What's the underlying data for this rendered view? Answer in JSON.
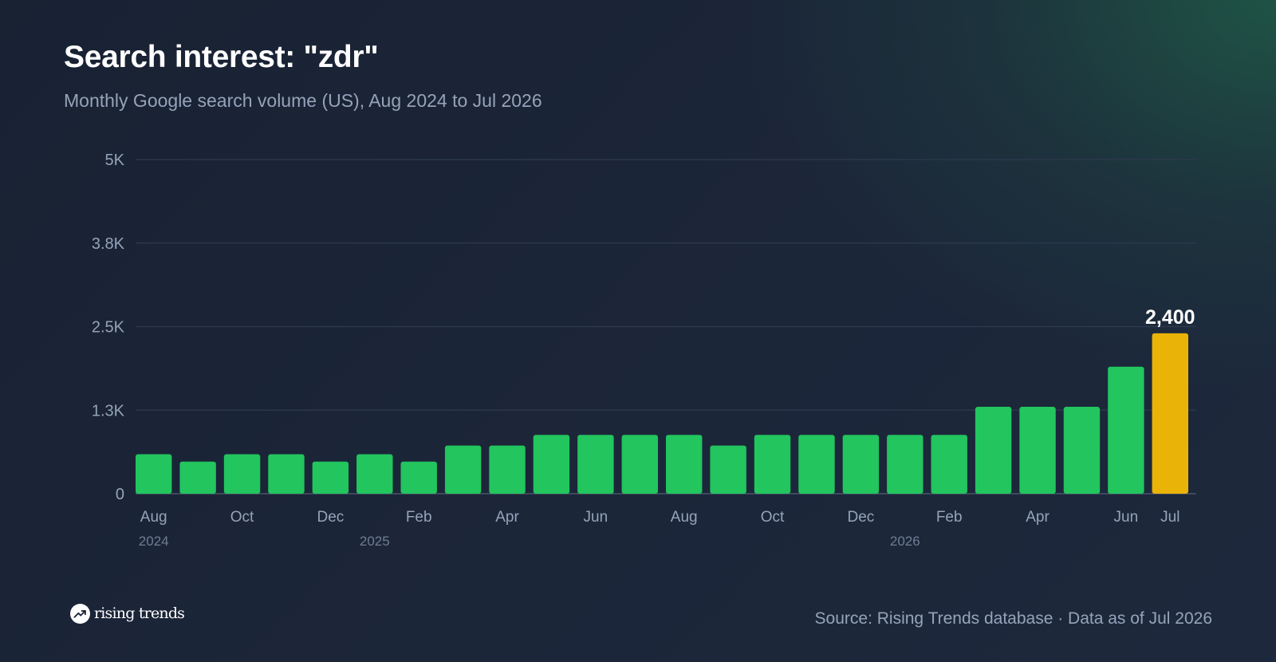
{
  "header": {
    "title": "Search interest: \"zdr\"",
    "subtitle": "Monthly Google search volume (US), Aug 2024 to Jul 2026"
  },
  "chart_data": {
    "type": "bar",
    "title": "Search interest: \"zdr\"",
    "subtitle": "Monthly Google search volume (US), Aug 2024 to Jul 2026",
    "xlabel": "",
    "ylabel": "",
    "categories": [
      "Aug 2024",
      "Sep 2024",
      "Oct 2024",
      "Nov 2024",
      "Dec 2024",
      "Jan 2025",
      "Feb 2025",
      "Mar 2025",
      "Apr 2025",
      "May 2025",
      "Jun 2025",
      "Jul 2025",
      "Aug 2025",
      "Sep 2025",
      "Oct 2025",
      "Nov 2025",
      "Dec 2025",
      "Jan 2026",
      "Feb 2026",
      "Mar 2026",
      "Apr 2026",
      "May 2026",
      "Jun 2026",
      "Jul 2026"
    ],
    "values": [
      590,
      480,
      590,
      590,
      480,
      590,
      480,
      720,
      720,
      880,
      880,
      880,
      880,
      720,
      880,
      880,
      880,
      880,
      880,
      1300,
      1300,
      1300,
      1900,
      2400
    ],
    "ylim": [
      0,
      5000
    ],
    "yticks": [
      0,
      1250,
      2500,
      3750,
      5000
    ],
    "ytick_labels": [
      "0",
      "1.3K",
      "2.5K",
      "3.8K",
      "5K"
    ],
    "xtick_labels": [
      {
        "index": 0,
        "label": "Aug"
      },
      {
        "index": 2,
        "label": "Oct"
      },
      {
        "index": 4,
        "label": "Dec"
      },
      {
        "index": 6,
        "label": "Feb"
      },
      {
        "index": 8,
        "label": "Apr"
      },
      {
        "index": 10,
        "label": "Jun"
      },
      {
        "index": 12,
        "label": "Aug"
      },
      {
        "index": 14,
        "label": "Oct"
      },
      {
        "index": 16,
        "label": "Dec"
      },
      {
        "index": 18,
        "label": "Feb"
      },
      {
        "index": 20,
        "label": "Apr"
      },
      {
        "index": 22,
        "label": "Jun"
      },
      {
        "index": 23,
        "label": "Jul"
      }
    ],
    "year_labels": [
      {
        "index": 0,
        "label": "2024"
      },
      {
        "index": 5,
        "label": "2025"
      },
      {
        "index": 17,
        "label": "2026"
      }
    ],
    "highlight": {
      "index": 23,
      "label": "2,400"
    },
    "grid": true,
    "colors": {
      "bar": "#22c55e",
      "highlight": "#eab308",
      "grid": "#2e3a4e",
      "axis_text": "#95a3ba",
      "year_text": "#6f7d94",
      "value_label": "#ffffff"
    }
  },
  "footer": {
    "brand_name": "rising trends",
    "brand_icon": "trending-up-icon",
    "source": "Source: Rising Trends database · Data as of Jul 2026"
  }
}
